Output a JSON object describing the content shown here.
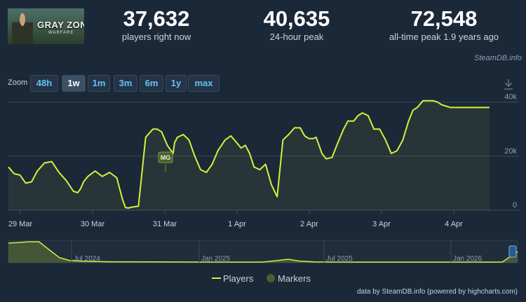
{
  "game": {
    "title_line1": "GRAY ZONE",
    "title_line2": "WARFARE"
  },
  "stats": [
    {
      "value": "37,632",
      "label": "players right now"
    },
    {
      "value": "40,635",
      "label": "24-hour peak"
    },
    {
      "value": "72,548",
      "label": "all-time peak 1.9 years ago"
    }
  ],
  "source_tag": "SteamDB.info",
  "zoom": {
    "label": "Zoom",
    "options": [
      "48h",
      "1w",
      "1m",
      "3m",
      "6m",
      "1y",
      "max"
    ],
    "selected": "1w"
  },
  "legend": {
    "players": "Players",
    "markers": "Markers"
  },
  "credit": "data by SteamDB.info (powered by highcharts.com)",
  "colors": {
    "line": "#d5f03c",
    "background": "#1b2838",
    "marker": "#4a5f2e",
    "accent": "#66c0f4"
  },
  "chart_data": [
    {
      "type": "line",
      "series": [
        {
          "name": "Players"
        }
      ],
      "x_tick_labels": [
        "29 Mar",
        "30 Mar",
        "31 Mar",
        "1 Apr",
        "2 Apr",
        "3 Apr",
        "4 Apr"
      ],
      "y_tick_labels": [
        "0",
        "20k",
        "40k"
      ],
      "ylim": [
        0,
        42000
      ],
      "grid": true,
      "marker": {
        "label": "MG",
        "x": "31 Mar",
        "y": 14000
      },
      "x": [
        0,
        0.08,
        0.16,
        0.24,
        0.32,
        0.4,
        0.5,
        0.6,
        0.7,
        0.8,
        0.9,
        0.96,
        1.0,
        1.04,
        1.1,
        1.2,
        1.3,
        1.4,
        1.5,
        1.58,
        1.62,
        1.66,
        1.72,
        1.8,
        1.9,
        2.0,
        2.06,
        2.12,
        2.2,
        2.28,
        2.3,
        2.34,
        2.42,
        2.5,
        2.58,
        2.66,
        2.74,
        2.82,
        2.9,
        3.0,
        3.08,
        3.16,
        3.22,
        3.28,
        3.34,
        3.4,
        3.48,
        3.56,
        3.64,
        3.72,
        3.8,
        3.88,
        3.96,
        4.04,
        4.1,
        4.16,
        4.22,
        4.26,
        4.3,
        4.34,
        4.4,
        4.48,
        4.56,
        4.64,
        4.7,
        4.78,
        4.84,
        4.9,
        4.98,
        5.06,
        5.14,
        5.22,
        5.3,
        5.38,
        5.46,
        5.54,
        5.6,
        5.66,
        5.74,
        5.82,
        5.88,
        5.94,
        6.0,
        6.06,
        6.12,
        6.2,
        6.28,
        6.36,
        6.44,
        6.52,
        6.58,
        6.62,
        6.66
      ],
      "values": [
        16000,
        13500,
        13000,
        10000,
        10500,
        14500,
        17500,
        18000,
        14000,
        11000,
        7000,
        6500,
        8000,
        10500,
        12500,
        14500,
        12500,
        14000,
        12000,
        4000,
        1000,
        800,
        1200,
        1500,
        27000,
        30000,
        30000,
        29000,
        24000,
        21000,
        25000,
        27000,
        28000,
        26000,
        20000,
        15000,
        14000,
        17000,
        22000,
        26000,
        27500,
        25000,
        23000,
        24000,
        21000,
        16000,
        15000,
        17000,
        9500,
        5000,
        26000,
        28000,
        30500,
        30500,
        27500,
        26500,
        26500,
        27000,
        24000,
        21000,
        19000,
        19500,
        25000,
        30000,
        33000,
        33000,
        35000,
        36000,
        35000,
        30000,
        30000,
        26000,
        21000,
        22000,
        26000,
        33000,
        37000,
        38000,
        40500,
        40500,
        40500,
        40000,
        39000,
        38500,
        38000,
        38000,
        38000,
        38000,
        38000,
        38000,
        38000,
        38000,
        38000
      ]
    },
    {
      "type": "area",
      "series": [
        {
          "name": "Players"
        }
      ],
      "x_tick_labels": [
        "Jul 2024",
        "Jan 2025",
        "Jul 2025",
        "Jan 2026"
      ],
      "x": [
        0,
        0.02,
        0.04,
        0.06,
        0.08,
        0.1,
        0.12,
        0.15,
        0.2,
        0.3,
        0.4,
        0.5,
        0.55,
        0.57,
        0.6,
        0.65,
        0.7,
        0.8,
        0.9,
        0.97,
        1.0
      ],
      "values": [
        68000,
        70000,
        72500,
        72500,
        45000,
        18000,
        8000,
        5000,
        3500,
        3000,
        2500,
        2500,
        12000,
        6000,
        3000,
        2500,
        2500,
        2500,
        2500,
        2500,
        38000
      ]
    }
  ]
}
